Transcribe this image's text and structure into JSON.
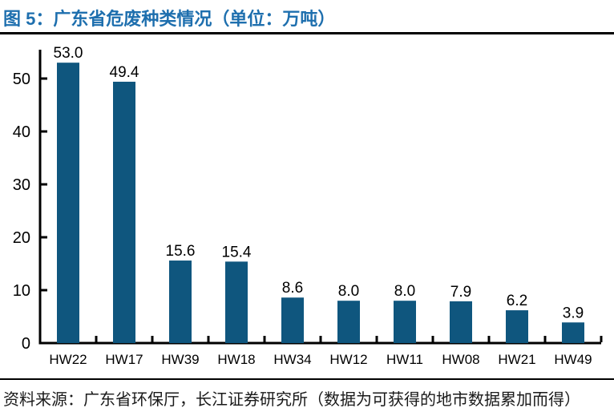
{
  "header": {
    "title": "图 5：广东省危废种类情况（单位：万吨）"
  },
  "footer": {
    "source": "资料来源：广东省环保厅，长江证券研究所（数据为可获得的地市数据累加而得）"
  },
  "colors": {
    "title_accent": "#1E6FAE",
    "bar": "#0F567E",
    "axis": "#000000",
    "text": "#000000",
    "divider": "#000000"
  },
  "chart_data": {
    "type": "bar",
    "title": "广东省危废种类情况",
    "unit": "万吨",
    "categories": [
      "HW22",
      "HW17",
      "HW39",
      "HW18",
      "HW34",
      "HW12",
      "HW11",
      "HW08",
      "HW21",
      "HW49"
    ],
    "values": [
      53.0,
      49.4,
      15.6,
      15.4,
      8.6,
      8.0,
      8.0,
      7.9,
      6.2,
      3.9
    ],
    "value_labels": [
      "53.0",
      "49.4",
      "15.6",
      "15.4",
      "8.6",
      "8.0",
      "8.0",
      "7.9",
      "6.2",
      "3.9"
    ],
    "xlabel": "",
    "ylabel": "",
    "ylim": [
      0,
      55
    ],
    "yticks": [
      0,
      10,
      20,
      30,
      40,
      50
    ],
    "grid": false,
    "legend": "none",
    "data_labels": true,
    "bar_color": "#0F567E",
    "label_color": "#000000"
  }
}
